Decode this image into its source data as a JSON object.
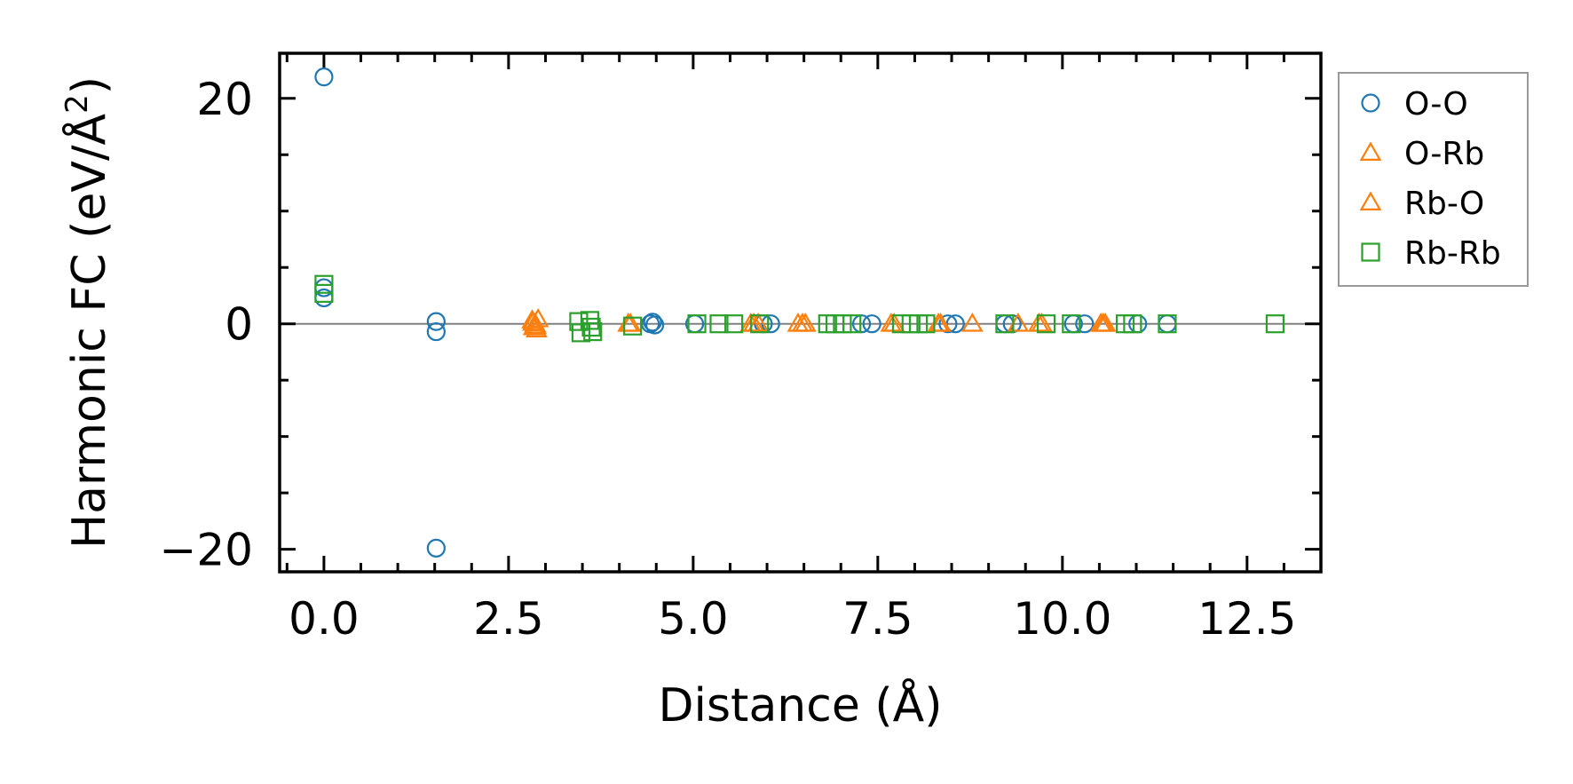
{
  "chart_data": {
    "type": "scatter",
    "title": "",
    "xlabel": "Distance (Å)",
    "ylabel": "Harmonic FC (eV/Å²)",
    "ylabel_parts": {
      "base": "Harmonic FC (eV/Å",
      "sup": "2",
      "end": ")"
    },
    "xlim": [
      -0.6,
      13.5
    ],
    "ylim": [
      -22,
      24
    ],
    "xticks": [
      0.0,
      2.5,
      5.0,
      7.5,
      10.0,
      12.5
    ],
    "xtick_labels": [
      "0.0",
      "2.5",
      "5.0",
      "7.5",
      "10.0",
      "12.5"
    ],
    "yticks": [
      -20,
      0,
      20
    ],
    "ytick_labels": [
      "−20",
      "0",
      "20"
    ],
    "zero_line": 0,
    "grid": false,
    "legend_position": "outside-right-top",
    "series": [
      {
        "name": "O-O",
        "marker": "circle",
        "color": "#1f77b4",
        "points": [
          [
            0.0,
            21.9
          ],
          [
            0.0,
            3.2
          ],
          [
            0.0,
            2.3
          ],
          [
            1.52,
            0.2
          ],
          [
            1.52,
            -0.7
          ],
          [
            1.52,
            -19.9
          ],
          [
            4.42,
            0.0
          ],
          [
            4.45,
            0.15
          ],
          [
            4.48,
            -0.1
          ],
          [
            5.02,
            0.0
          ],
          [
            5.95,
            0.0
          ],
          [
            6.05,
            0.0
          ],
          [
            7.28,
            0.0
          ],
          [
            7.42,
            0.0
          ],
          [
            8.45,
            0.0
          ],
          [
            8.55,
            0.0
          ],
          [
            9.22,
            0.0
          ],
          [
            9.32,
            0.0
          ],
          [
            10.15,
            0.0
          ],
          [
            10.3,
            0.0
          ],
          [
            11.02,
            0.0
          ],
          [
            11.42,
            0.0
          ]
        ]
      },
      {
        "name": "O-Rb",
        "marker": "triangle",
        "color": "#ff7f0e",
        "points": [
          [
            2.82,
            0.3
          ],
          [
            2.84,
            -0.3
          ],
          [
            2.86,
            0.0
          ],
          [
            2.88,
            -0.5
          ],
          [
            2.9,
            0.4
          ],
          [
            4.12,
            0.0
          ],
          [
            5.78,
            0.0
          ],
          [
            5.88,
            0.0
          ],
          [
            6.42,
            0.0
          ],
          [
            6.52,
            0.0
          ],
          [
            7.68,
            0.0
          ],
          [
            8.32,
            0.0
          ],
          [
            8.78,
            0.0
          ],
          [
            9.4,
            0.0
          ],
          [
            9.68,
            0.0
          ],
          [
            10.52,
            0.0
          ],
          [
            10.58,
            0.0
          ]
        ]
      },
      {
        "name": "Rb-O",
        "marker": "triangle",
        "color": "#ff7f0e",
        "points": [
          [
            2.83,
            0.1
          ],
          [
            2.87,
            -0.2
          ],
          [
            4.15,
            0.0
          ],
          [
            5.82,
            0.0
          ],
          [
            6.48,
            0.0
          ],
          [
            7.72,
            0.0
          ],
          [
            8.35,
            0.0
          ],
          [
            9.72,
            0.0
          ],
          [
            10.55,
            0.0
          ]
        ]
      },
      {
        "name": "Rb-Rb",
        "marker": "square",
        "color": "#2ca02c",
        "points": [
          [
            0.0,
            3.5
          ],
          [
            0.0,
            2.7
          ],
          [
            3.45,
            0.2
          ],
          [
            3.48,
            -0.8
          ],
          [
            3.6,
            0.3
          ],
          [
            3.62,
            -0.3
          ],
          [
            3.64,
            -0.7
          ],
          [
            4.18,
            -0.2
          ],
          [
            5.05,
            0.0
          ],
          [
            5.35,
            0.0
          ],
          [
            5.55,
            0.0
          ],
          [
            5.9,
            0.0
          ],
          [
            6.82,
            0.0
          ],
          [
            6.92,
            0.0
          ],
          [
            7.02,
            0.0
          ],
          [
            7.15,
            0.0
          ],
          [
            7.82,
            0.0
          ],
          [
            7.95,
            0.0
          ],
          [
            8.05,
            0.0
          ],
          [
            8.15,
            0.0
          ],
          [
            9.22,
            0.0
          ],
          [
            9.78,
            0.0
          ],
          [
            10.12,
            0.0
          ],
          [
            10.85,
            0.0
          ],
          [
            10.95,
            0.0
          ],
          [
            11.42,
            0.0
          ],
          [
            12.88,
            0.0
          ]
        ]
      }
    ]
  }
}
